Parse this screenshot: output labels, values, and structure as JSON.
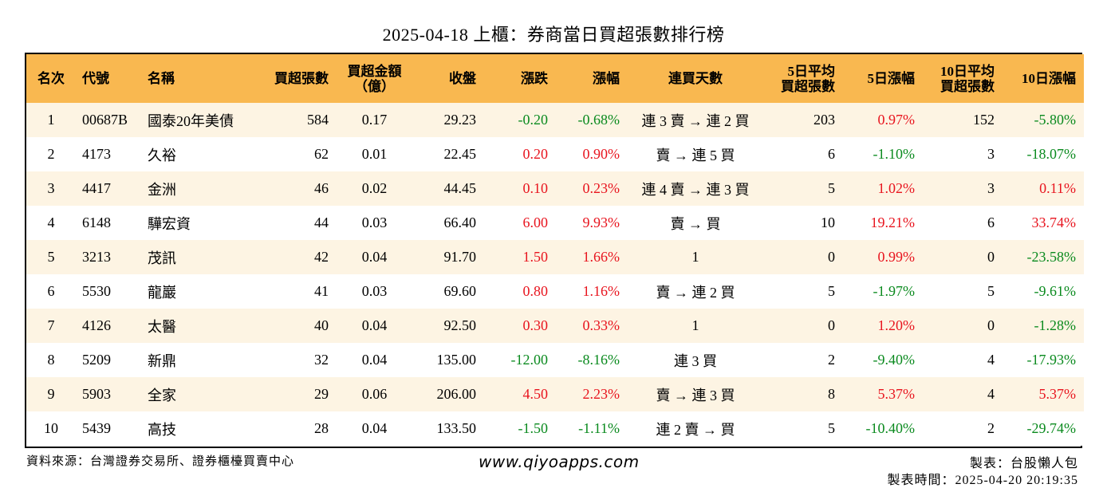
{
  "title": "2025-04-18 上櫃：券商當日買超張數排行榜",
  "headers": {
    "rank": "名次",
    "code": "代號",
    "name": "名稱",
    "net_buy_lots": "買超張數",
    "net_buy_amt_l1": "買超金額",
    "net_buy_amt_l2": "（億）",
    "close": "收盤",
    "change": "漲跌",
    "pct": "漲幅",
    "streak": "連買天數",
    "avg5_l1": "5日平均",
    "avg5_l2": "買超張數",
    "pct5": "5日漲幅",
    "avg10_l1": "10日平均",
    "avg10_l2": "買超張數",
    "pct10": "10日漲幅"
  },
  "rows": [
    {
      "rank": "1",
      "code": "00687B",
      "name": "國泰20年美債",
      "lots": "584",
      "amt": "0.17",
      "close": "29.23",
      "chg": "-0.20",
      "pct": "-0.68%",
      "streak": "連 3 賣 → 連 2 買",
      "avg5": "203",
      "pct5": "0.97%",
      "avg10": "152",
      "pct10": "-5.80%"
    },
    {
      "rank": "2",
      "code": "4173",
      "name": "久裕",
      "lots": "62",
      "amt": "0.01",
      "close": "22.45",
      "chg": "0.20",
      "pct": "0.90%",
      "streak": "賣 → 連 5 買",
      "avg5": "6",
      "pct5": "-1.10%",
      "avg10": "3",
      "pct10": "-18.07%"
    },
    {
      "rank": "3",
      "code": "4417",
      "name": "金洲",
      "lots": "46",
      "amt": "0.02",
      "close": "44.45",
      "chg": "0.10",
      "pct": "0.23%",
      "streak": "連 4 賣 → 連 3 買",
      "avg5": "5",
      "pct5": "1.02%",
      "avg10": "3",
      "pct10": "0.11%"
    },
    {
      "rank": "4",
      "code": "6148",
      "name": "驊宏資",
      "lots": "44",
      "amt": "0.03",
      "close": "66.40",
      "chg": "6.00",
      "pct": "9.93%",
      "streak": "賣 → 買",
      "avg5": "10",
      "pct5": "19.21%",
      "avg10": "6",
      "pct10": "33.74%"
    },
    {
      "rank": "5",
      "code": "3213",
      "name": "茂訊",
      "lots": "42",
      "amt": "0.04",
      "close": "91.70",
      "chg": "1.50",
      "pct": "1.66%",
      "streak": "1",
      "avg5": "0",
      "pct5": "0.99%",
      "avg10": "0",
      "pct10": "-23.58%"
    },
    {
      "rank": "6",
      "code": "5530",
      "name": "龍巖",
      "lots": "41",
      "amt": "0.03",
      "close": "69.60",
      "chg": "0.80",
      "pct": "1.16%",
      "streak": "賣 → 連 2 買",
      "avg5": "5",
      "pct5": "-1.97%",
      "avg10": "5",
      "pct10": "-9.61%"
    },
    {
      "rank": "7",
      "code": "4126",
      "name": "太醫",
      "lots": "40",
      "amt": "0.04",
      "close": "92.50",
      "chg": "0.30",
      "pct": "0.33%",
      "streak": "1",
      "avg5": "0",
      "pct5": "1.20%",
      "avg10": "0",
      "pct10": "-1.28%"
    },
    {
      "rank": "8",
      "code": "5209",
      "name": "新鼎",
      "lots": "32",
      "amt": "0.04",
      "close": "135.00",
      "chg": "-12.00",
      "pct": "-8.16%",
      "streak": "連 3 買",
      "avg5": "2",
      "pct5": "-9.40%",
      "avg10": "4",
      "pct10": "-17.93%"
    },
    {
      "rank": "9",
      "code": "5903",
      "name": "全家",
      "lots": "29",
      "amt": "0.06",
      "close": "206.00",
      "chg": "4.50",
      "pct": "2.23%",
      "streak": "賣 → 連 3 買",
      "avg5": "8",
      "pct5": "5.37%",
      "avg10": "4",
      "pct10": "5.37%"
    },
    {
      "rank": "10",
      "code": "5439",
      "name": "高技",
      "lots": "28",
      "amt": "0.04",
      "close": "133.50",
      "chg": "-1.50",
      "pct": "-1.11%",
      "streak": "連 2 賣 → 買",
      "avg5": "5",
      "pct5": "-10.40%",
      "avg10": "2",
      "pct10": "-29.74%"
    }
  ],
  "footer": {
    "source": "資料來源：台灣證券交易所、證券櫃檯買賣中心",
    "website": "www.qiyoapps.com",
    "maker": "製表：台股懶人包",
    "made_time": "製表時間：2025-04-20 20:19:35"
  },
  "colors": {
    "header_bg": "#f9b850",
    "row_alt_bg": "#fdf4e3",
    "positive": "#e8141e",
    "negative": "#0a8a1e"
  }
}
